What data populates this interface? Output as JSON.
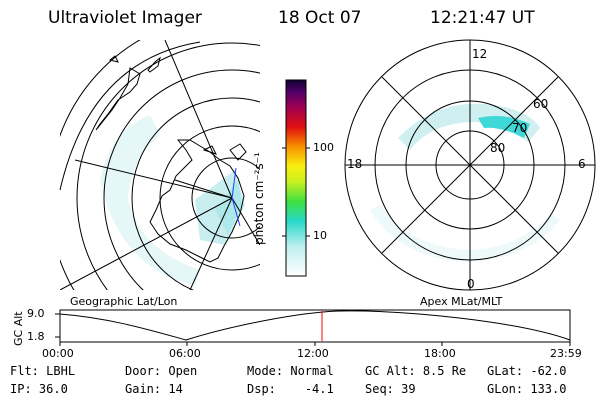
{
  "header": {
    "instrument": "Ultraviolet Imager",
    "date": "18 Oct 07",
    "time": "12:21:47 UT"
  },
  "colorbar": {
    "unit_label": "photon cm⁻²s⁻¹",
    "ticks": [
      "100",
      "10"
    ]
  },
  "panels": {
    "left_title": "Geographic Lat/Lon",
    "right_title": "Apex MLat/MLT",
    "mlt_labels": {
      "top": "12",
      "left": "18",
      "right": "6",
      "bottom": "0"
    },
    "lat_labels": [
      "60",
      "70",
      "80"
    ]
  },
  "timeline": {
    "axis_label": "GC Alt",
    "y_ticks": [
      "9.0",
      "1.8"
    ],
    "x_ticks": [
      "00:00",
      "06:00",
      "12:00",
      "18:00",
      "23:59"
    ]
  },
  "info": {
    "row1": [
      {
        "label": "Flt:",
        "value": "LBHL"
      },
      {
        "label": "Door:",
        "value": "Open"
      },
      {
        "label": "Mode:",
        "value": "Normal"
      },
      {
        "label": "GC Alt:",
        "value": "8.5 Re"
      },
      {
        "label": "GLat:",
        "value": "-62.0"
      }
    ],
    "row2": [
      {
        "label": "IP:",
        "value": "36.0"
      },
      {
        "label": "Gain:",
        "value": "14"
      },
      {
        "label": "Dsp:",
        "value": "-4.1"
      },
      {
        "label": "Seq:",
        "value": "39"
      },
      {
        "label": "GLon:",
        "value": "133.0"
      }
    ]
  },
  "colors": {
    "aurora": "#c8eef0",
    "aurora_bright": "#3fd8d8",
    "marker": "#ff0000"
  }
}
